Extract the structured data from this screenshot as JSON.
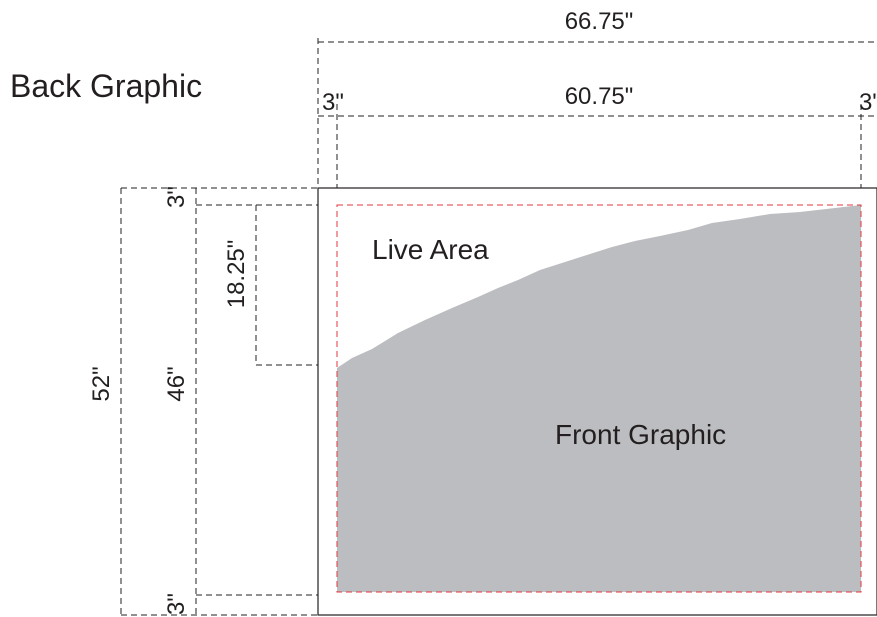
{
  "title": "Back Graphic",
  "live_area_label": "Live Area",
  "front_graphic_label": "Front Graphic",
  "dimensions": {
    "overall_width": "66.75\"",
    "live_width": "60.75\"",
    "left_margin": "3\"",
    "right_margin": "3\"",
    "overall_height": "52\"",
    "live_height": "46\"",
    "top_margin": "3\"",
    "bottom_margin": "3\"",
    "curve_drop": "18.25\""
  },
  "colors": {
    "front_graphic_fill": "#bcbdc0",
    "live_area_border": "#e0393e",
    "line": "#231f20"
  }
}
